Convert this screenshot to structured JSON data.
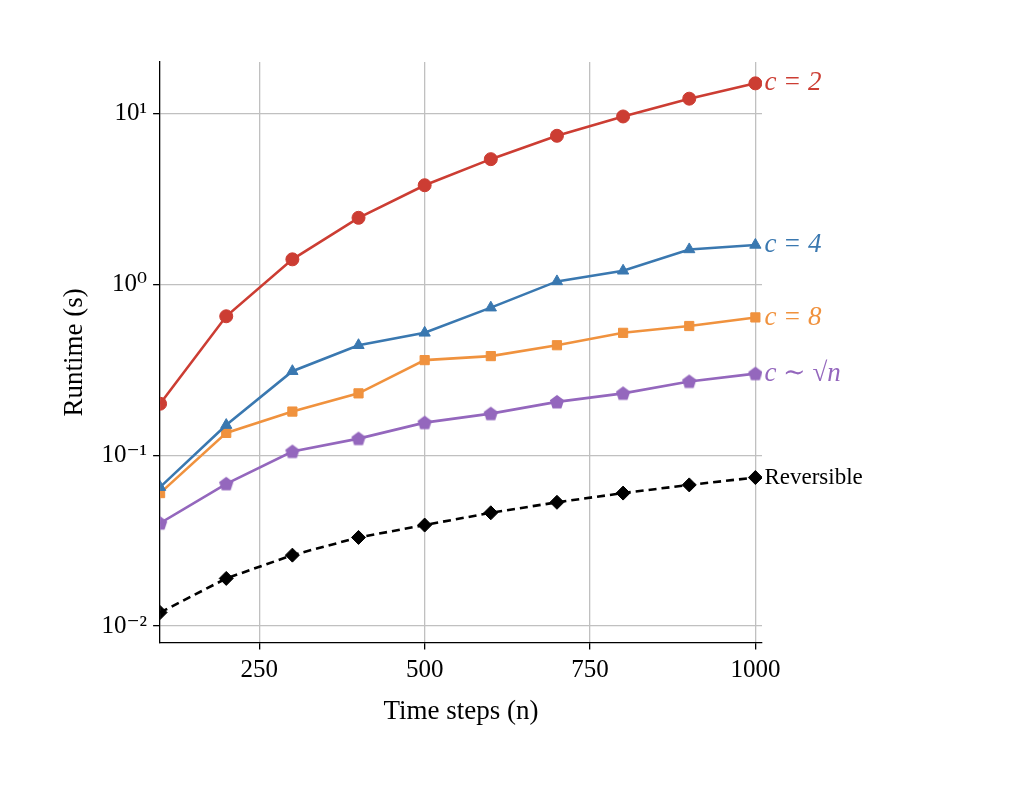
{
  "chart_data": {
    "type": "line",
    "x_label": "Time steps (n)",
    "y_label": "Runtime (s)",
    "x": [
      100,
      200,
      300,
      400,
      500,
      600,
      700,
      800,
      900,
      1000
    ],
    "series": [
      {
        "name": "c = 2",
        "color": "#cc3d33",
        "marker": "circle",
        "line_style": "solid",
        "values": [
          0.2,
          0.65,
          1.4,
          2.45,
          3.8,
          5.4,
          7.4,
          9.6,
          12.2,
          15
        ]
      },
      {
        "name": "c = 4",
        "color": "#3a78b0",
        "marker": "triangle",
        "line_style": "solid",
        "values": [
          0.065,
          0.15,
          0.31,
          0.44,
          0.52,
          0.73,
          1.04,
          1.2,
          1.6,
          1.7
        ]
      },
      {
        "name": "c = 8",
        "color": "#f0923e",
        "marker": "square",
        "line_style": "solid",
        "values": [
          0.06,
          0.135,
          0.18,
          0.23,
          0.36,
          0.38,
          0.44,
          0.52,
          0.57,
          0.64
        ]
      },
      {
        "name": "c ∼ √n",
        "color": "#9467bd",
        "marker": "pentagon",
        "line_style": "solid",
        "values": [
          0.04,
          0.068,
          0.105,
          0.125,
          0.155,
          0.175,
          0.205,
          0.23,
          0.27,
          0.3
        ]
      },
      {
        "name": "Reversible",
        "color": "#000000",
        "marker": "diamond",
        "line_style": "dashed",
        "values": [
          0.012,
          0.019,
          0.026,
          0.033,
          0.039,
          0.046,
          0.053,
          0.06,
          0.067,
          0.074
        ]
      }
    ],
    "xlim": [
      100,
      1010
    ],
    "xticks": [
      250,
      500,
      750,
      1000
    ],
    "ylim": [
      0.008,
      20
    ],
    "yticks": [
      {
        "value": 0.01,
        "label": "10⁻²"
      },
      {
        "value": 0.1,
        "label": "10⁻¹"
      },
      {
        "value": 1,
        "label": "10⁰"
      },
      {
        "value": 10,
        "label": "10¹"
      }
    ],
    "log": "y",
    "grid": true
  }
}
